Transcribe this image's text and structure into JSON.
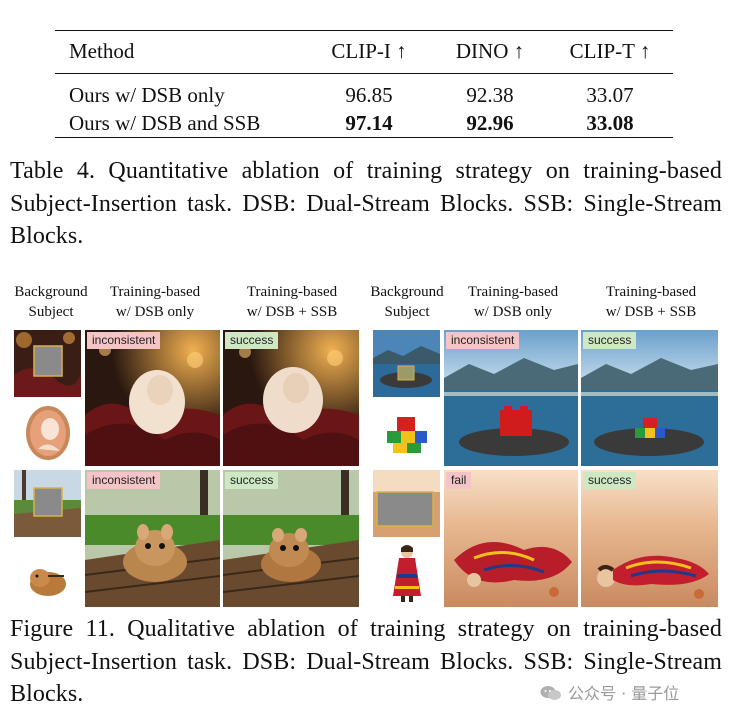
{
  "table": {
    "headers": [
      "Method",
      "CLIP-I ↑",
      "DINO ↑",
      "CLIP-T ↑"
    ],
    "rows": [
      {
        "method": "Ours w/ DSB only",
        "clip_i": "96.85",
        "dino": "92.38",
        "clip_t": "33.07"
      },
      {
        "method": "Ours w/ DSB and SSB",
        "clip_i": "97.14",
        "dino": "92.96",
        "clip_t": "33.08"
      }
    ],
    "caption": "Table 4.  Quantitative ablation of training strategy on training-based Subject-Insertion task.  DSB: Dual-Stream Blocks.  SSB: Single-Stream Blocks."
  },
  "figure": {
    "headers": {
      "background_subject": [
        "Background",
        "Subject"
      ],
      "dsb_only": [
        "Training-based",
        "w/ DSB only"
      ],
      "dsb_ssb": [
        "Training-based",
        "w/ DSB + SSB"
      ]
    },
    "tags": {
      "r1_left_dsb": "inconsistent",
      "r1_left_ssb": "success",
      "r1_right_dsb": "inconsistent",
      "r1_right_ssb": "success",
      "r2_left_dsb": "inconsistent",
      "r2_left_ssb": "success",
      "r2_right_dsb": "fail",
      "r2_right_ssb": "success"
    },
    "caption": "Figure 11.  Qualitative ablation of training strategy on training-based Subject-Insertion task.  DSB: Dual-Stream Blocks.  SSB: Single-Stream Blocks."
  },
  "watermark": {
    "text": "公众号 · 量子位",
    "icon": "wechat-icon"
  },
  "colors": {
    "tag_bad": "#f5c4c6",
    "tag_ok": "#cfe8c4",
    "text": "#111111"
  }
}
